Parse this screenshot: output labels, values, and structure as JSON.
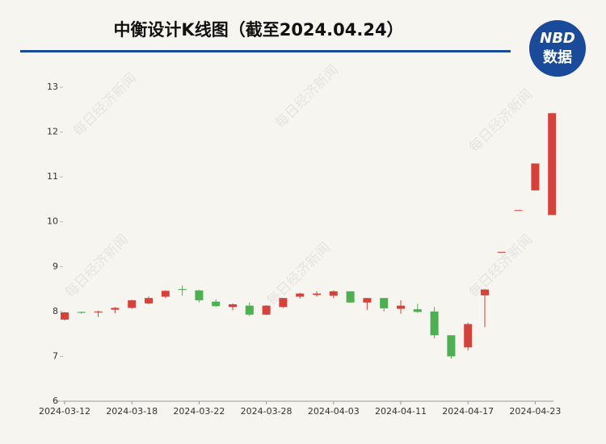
{
  "chart_data": {
    "type": "candlestick",
    "title": "中衡设计K线图（截至2024.04.24）",
    "logo": {
      "top": "NBD",
      "bottom": "数据"
    },
    "watermark": "每日经济新闻",
    "categories": [
      "2024-03-12",
      null,
      null,
      null,
      "2024-03-18",
      null,
      null,
      null,
      "2024-03-22",
      null,
      null,
      null,
      "2024-03-28",
      null,
      null,
      null,
      "2024-04-03",
      null,
      null,
      null,
      "2024-04-11",
      null,
      null,
      null,
      "2024-04-17",
      null,
      null,
      null,
      "2024-04-23",
      null
    ],
    "open": [
      7.82,
      7.99,
      7.98,
      8.04,
      8.08,
      8.18,
      8.33,
      8.5,
      8.47,
      8.22,
      8.1,
      8.13,
      7.93,
      8.1,
      8.33,
      8.37,
      8.35,
      8.45,
      8.2,
      8.3,
      8.06,
      8.05,
      8.0,
      7.47,
      7.2,
      8.36,
      9.33,
      10.26,
      10.7,
      10.15
    ],
    "high": [
      7.99,
      8.0,
      8.02,
      8.1,
      8.26,
      8.33,
      8.47,
      8.58,
      8.48,
      8.27,
      8.18,
      8.2,
      8.14,
      8.3,
      8.42,
      8.45,
      8.47,
      8.45,
      8.3,
      8.3,
      8.25,
      8.17,
      8.1,
      7.47,
      7.75,
      8.5,
      9.33,
      10.26,
      11.3,
      12.42
    ],
    "low": [
      7.8,
      7.95,
      7.88,
      7.96,
      8.06,
      8.16,
      8.3,
      8.35,
      8.2,
      8.1,
      8.03,
      7.9,
      7.92,
      8.08,
      8.29,
      8.33,
      8.3,
      8.2,
      8.03,
      8.0,
      7.95,
      7.97,
      7.4,
      6.95,
      7.13,
      7.65,
      9.33,
      10.26,
      10.7,
      10.15
    ],
    "close": [
      7.98,
      7.97,
      8.0,
      8.08,
      8.25,
      8.3,
      8.46,
      8.48,
      8.25,
      8.12,
      8.16,
      7.93,
      8.13,
      8.3,
      8.4,
      8.4,
      8.45,
      8.2,
      8.3,
      8.07,
      8.13,
      7.99,
      7.47,
      7.0,
      7.72,
      8.49,
      9.33,
      10.26,
      11.3,
      12.42
    ],
    "up_color": "#d9403a",
    "down_color": "#4caf50",
    "ylim": [
      6,
      13
    ],
    "yticks": [
      6,
      7,
      8,
      9,
      10,
      11,
      12,
      13
    ]
  }
}
